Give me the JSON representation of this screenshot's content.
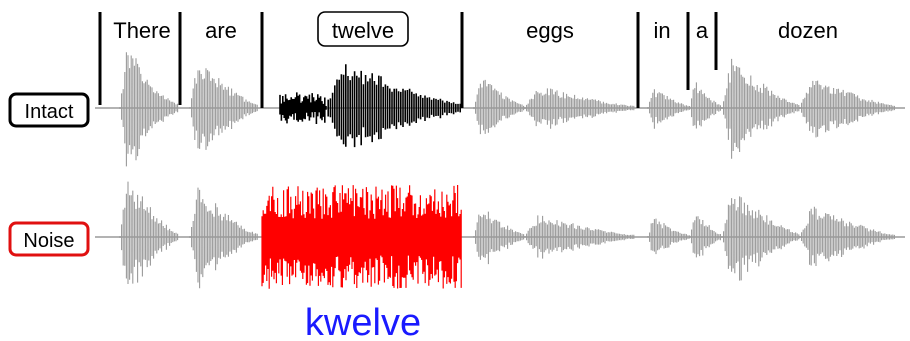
{
  "words": [
    {
      "text": "There",
      "highlighted": false
    },
    {
      "text": "are",
      "highlighted": false
    },
    {
      "text": "twelve",
      "highlighted": true
    },
    {
      "text": "eggs",
      "highlighted": false
    },
    {
      "text": "in",
      "highlighted": false
    },
    {
      "text": "a",
      "highlighted": false
    },
    {
      "text": "dozen",
      "highlighted": false
    }
  ],
  "rows": [
    {
      "label": "Intact",
      "label_color": "#000000",
      "target_color": "#000000",
      "target_style": "speech"
    },
    {
      "label": "Noise",
      "label_color": "#e01010",
      "target_color": "#ff0000",
      "target_style": "noise"
    }
  ],
  "perceived_word": "kwelve",
  "colors": {
    "context_wave": "#9a9a9a",
    "boundary": "#000000",
    "perceived_word": "#1a1aff"
  }
}
